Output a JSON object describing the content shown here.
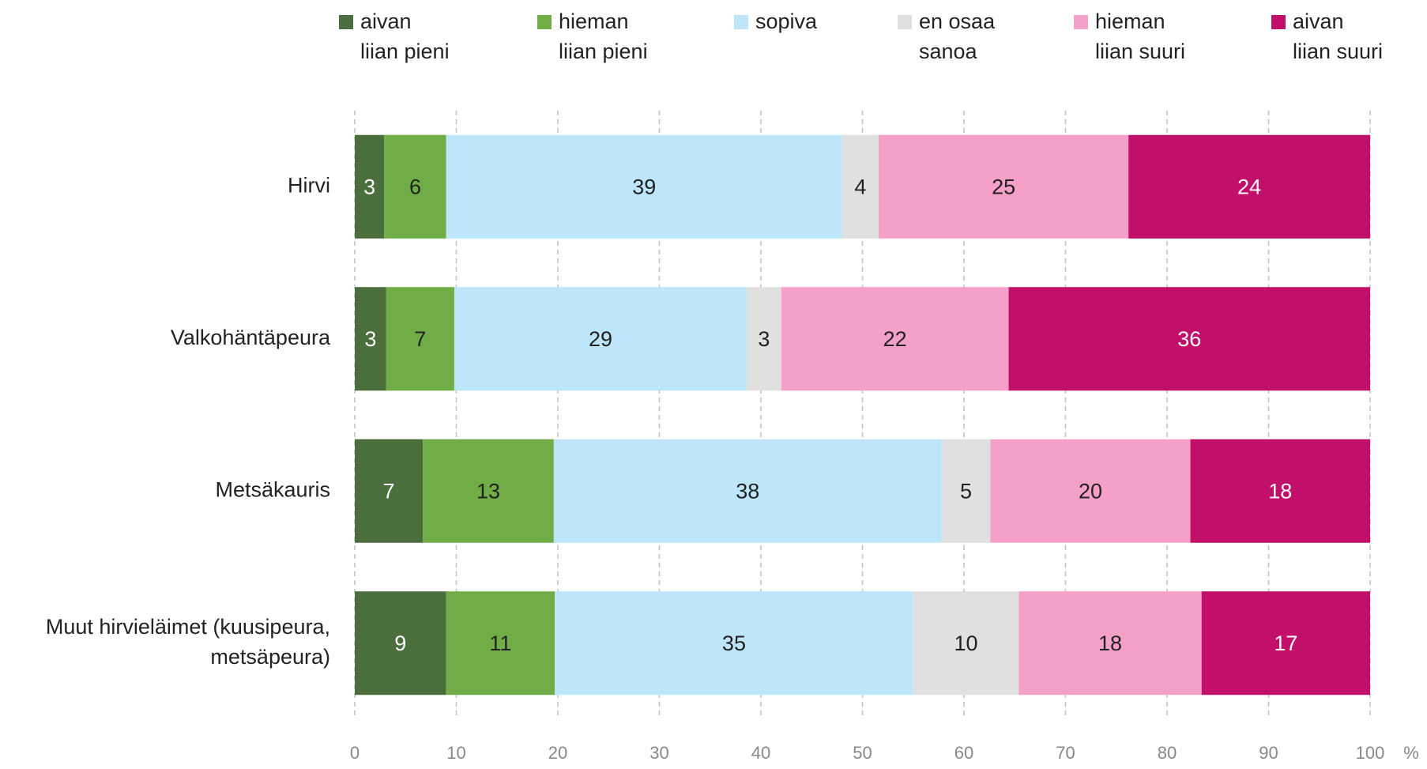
{
  "chart_data": {
    "type": "stacked_barh",
    "categories": [
      "Hirvi",
      "Valkohäntäpeura",
      "Metsäkauris",
      "Muut hirvieläimet (kuusipeura,\nmetsäpeura)"
    ],
    "series": [
      {
        "name": "aivan\nliian pieni",
        "color": "#4a6e3c",
        "values": [
          2.9,
          3.1,
          6.7,
          9.0
        ],
        "value_labels": [
          "3",
          "3",
          "7",
          "9"
        ]
      },
      {
        "name": "hieman\nliian pieni",
        "color": "#70ad47",
        "values": [
          6.1,
          6.7,
          12.9,
          10.7
        ],
        "value_labels": [
          "6",
          "7",
          "13",
          "11"
        ]
      },
      {
        "name": "sopiva",
        "color": "#bde6fa",
        "values": [
          39.0,
          28.8,
          38.2,
          35.3
        ],
        "value_labels": [
          "39",
          "29",
          "38",
          "35"
        ]
      },
      {
        "name": "en osaa\nsanoa",
        "color": "#e0e0e0",
        "values": [
          3.6,
          3.4,
          4.8,
          10.4
        ],
        "value_labels": [
          "4",
          "3",
          "5",
          "10"
        ]
      },
      {
        "name": "hieman\nliian suuri",
        "color": "#f4a0c8",
        "values": [
          24.6,
          22.4,
          19.7,
          18.0
        ],
        "value_labels": [
          "25",
          "22",
          "20",
          "18"
        ]
      },
      {
        "name": "aivan\nliian suuri",
        "color": "#c2106a",
        "values": [
          23.8,
          35.6,
          17.7,
          16.6
        ],
        "value_labels": [
          "24",
          "36",
          "18",
          "17"
        ]
      }
    ],
    "xlabel": "%",
    "xlim": [
      0,
      100
    ],
    "xticks": [
      0,
      10,
      20,
      30,
      40,
      50,
      60,
      70,
      80,
      90,
      100
    ],
    "grid": true,
    "legend": "top"
  }
}
